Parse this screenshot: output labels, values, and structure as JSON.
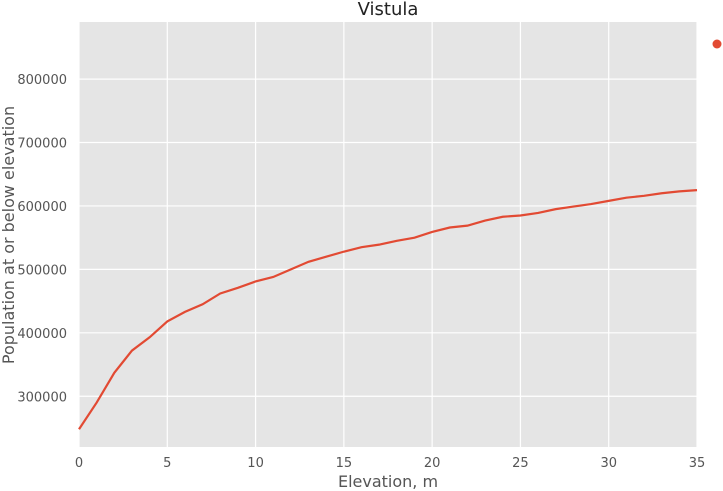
{
  "chart_data": {
    "type": "line",
    "title": "Vistula",
    "xlabel": "Elevation, m",
    "ylabel": "Population at or below elevation",
    "xlim": [
      0,
      35
    ],
    "ylim": [
      220000,
      890000
    ],
    "xticks": [
      0,
      5,
      10,
      15,
      20,
      25,
      30,
      35
    ],
    "yticks": [
      300000,
      400000,
      500000,
      600000,
      700000,
      800000
    ],
    "grid": true,
    "legend": "top-right marker, no label",
    "colors": {
      "series": "#e24a33",
      "background": "#e5e5e5",
      "grid": "#ffffff"
    },
    "series": [
      {
        "x": [
          0,
          1,
          2,
          3,
          4,
          5,
          6,
          7,
          8,
          9,
          10,
          11,
          12,
          13,
          14,
          15,
          16,
          17,
          18,
          19,
          20,
          21,
          22,
          23,
          24,
          25,
          26,
          27,
          28,
          29,
          30,
          31,
          32,
          33,
          34,
          35
        ],
        "values": [
          248000,
          290000,
          337000,
          372000,
          393000,
          418000,
          433000,
          445000,
          462000,
          471000,
          481000,
          488000,
          500000,
          512000,
          520000,
          528000,
          535000,
          539000,
          545000,
          550000,
          559000,
          566000,
          569000,
          577000,
          583000,
          585000,
          589000,
          595000,
          599000,
          603000,
          608000,
          613000,
          616000,
          620000,
          623000,
          625000
        ]
      }
    ]
  }
}
